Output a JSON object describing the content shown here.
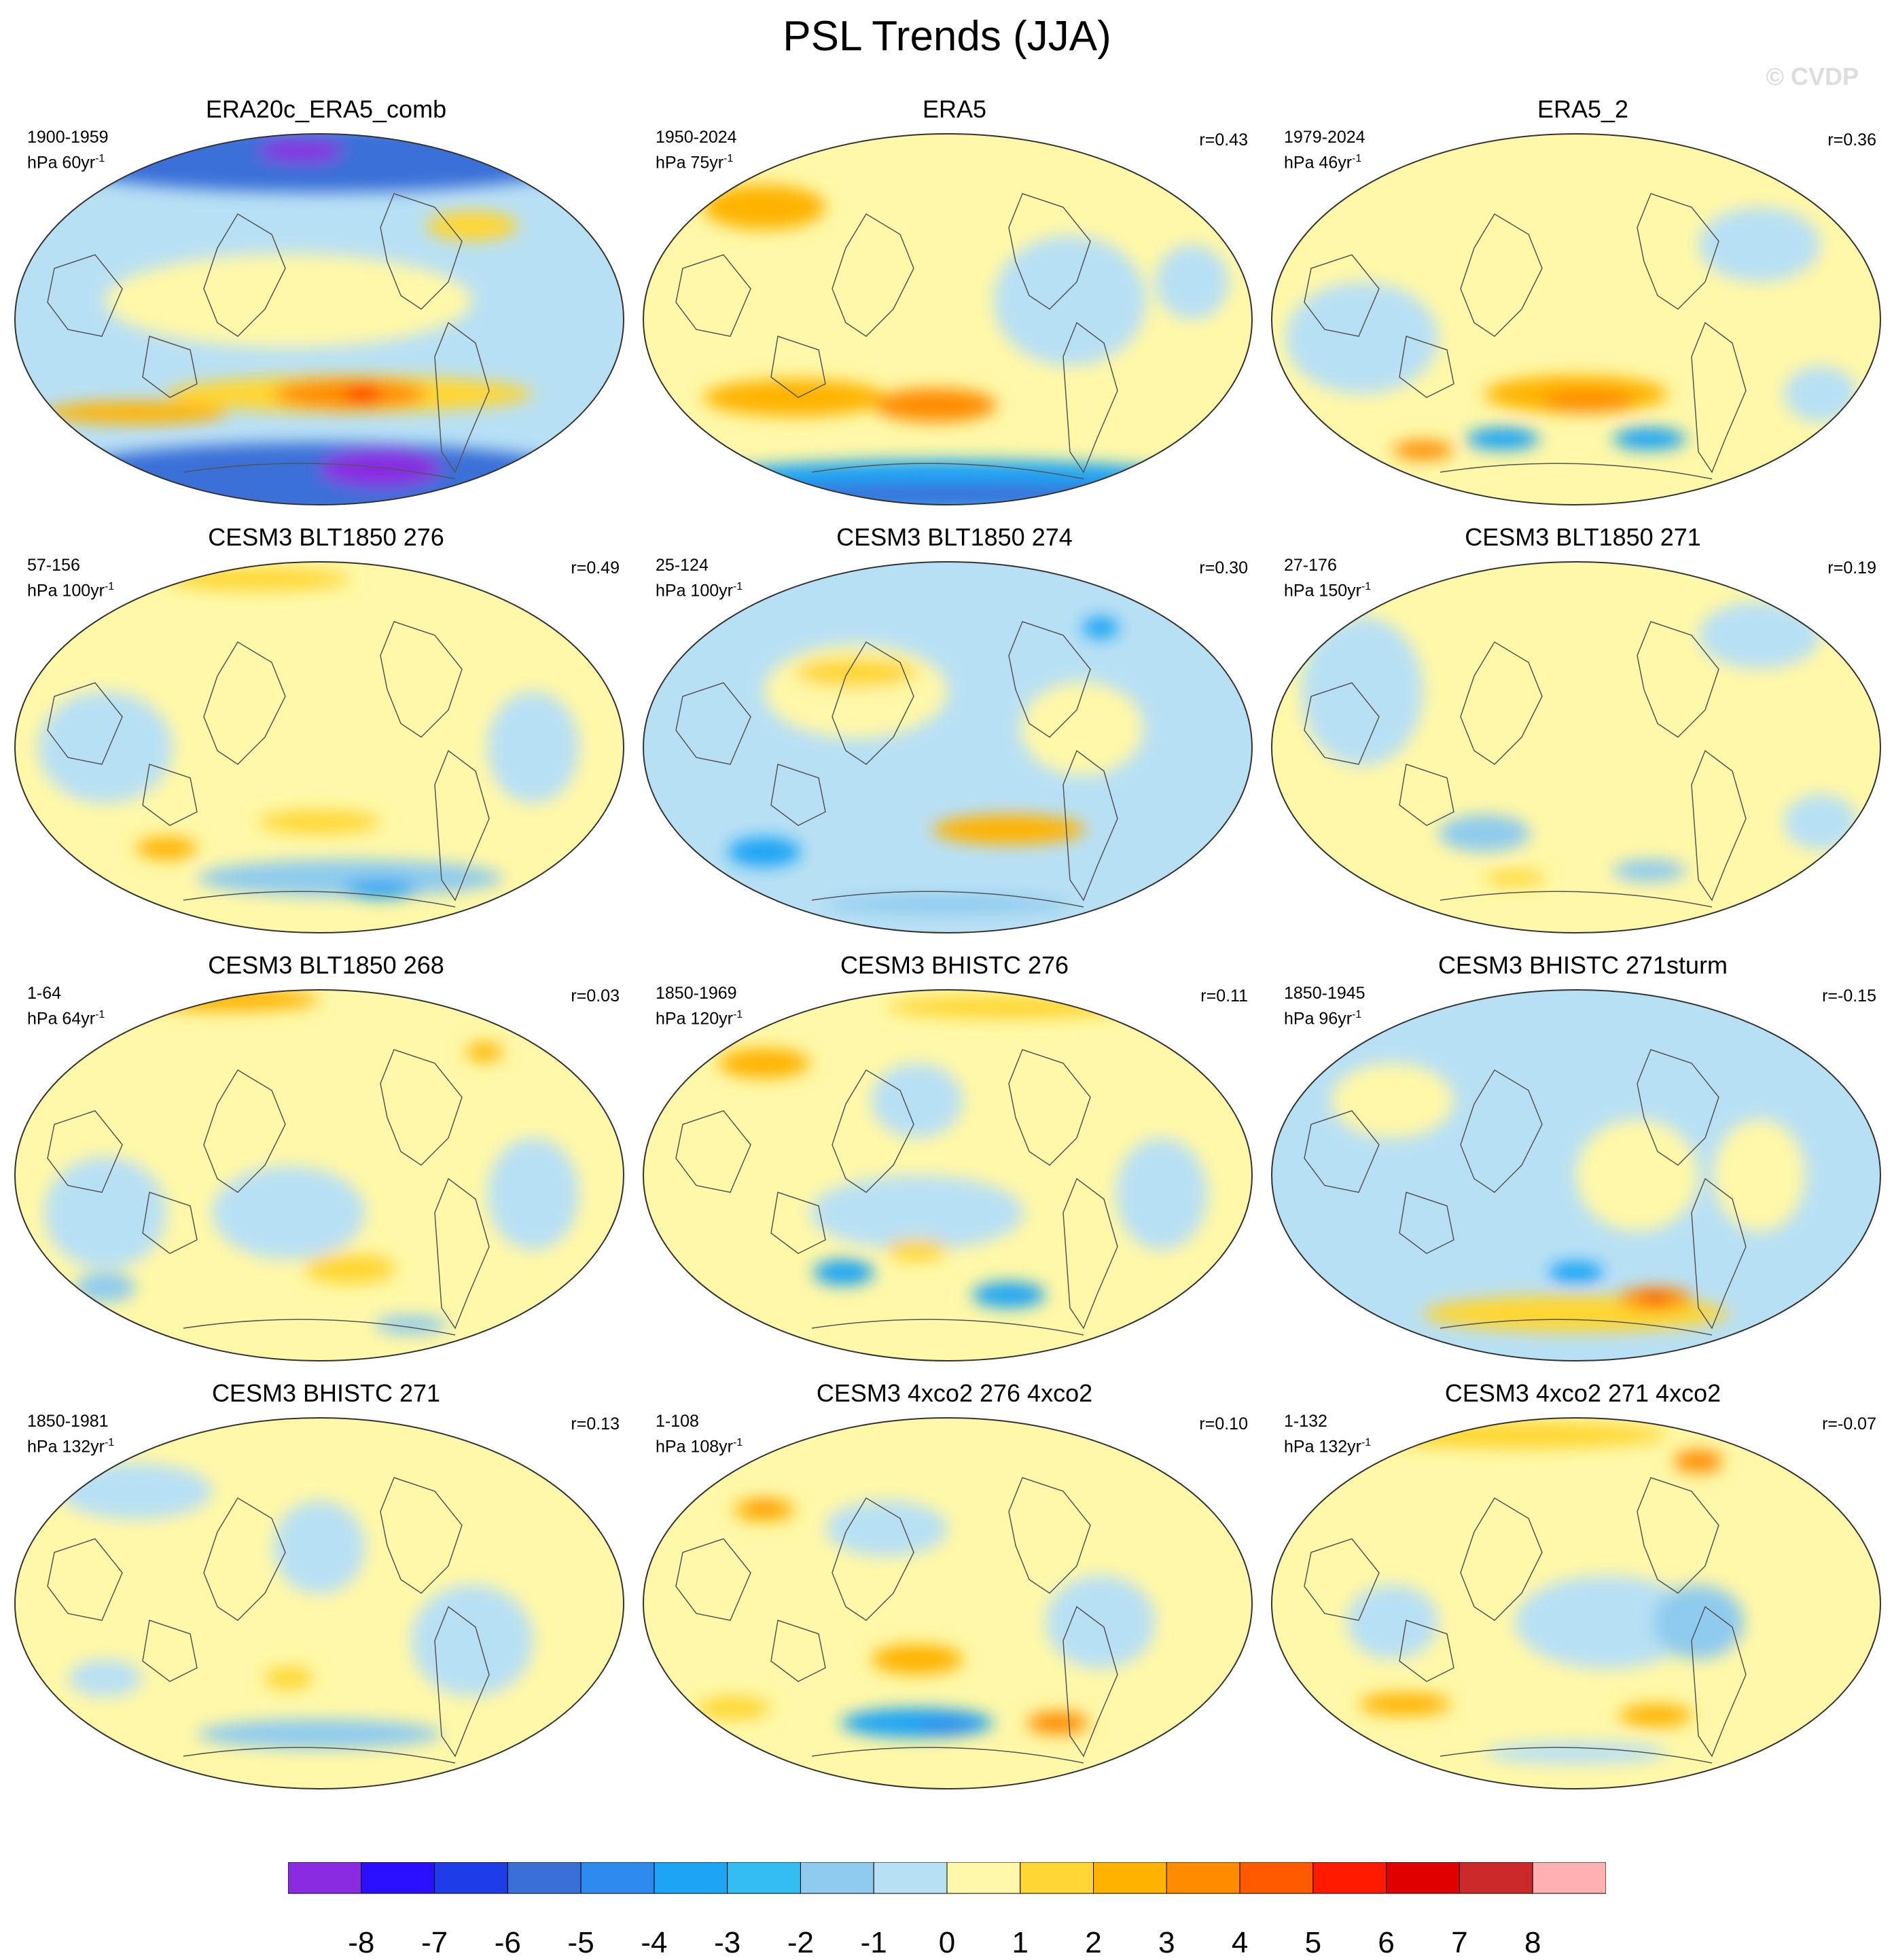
{
  "title": "PSL Trends (JJA)",
  "watermark": "© CVDP",
  "panels": [
    {
      "title": "ERA20c_ERA5_comb",
      "years": "1900-1959",
      "trend_unit": "hPa 60yr",
      "exp": "-1",
      "r": ""
    },
    {
      "title": "ERA5",
      "years": "1950-2024",
      "trend_unit": "hPa 75yr",
      "exp": "-1",
      "r": "r=0.43"
    },
    {
      "title": "ERA5_2",
      "years": "1979-2024",
      "trend_unit": "hPa 46yr",
      "exp": "-1",
      "r": "r=0.36"
    },
    {
      "title": "CESM3 BLT1850 276",
      "years": "57-156",
      "trend_unit": "hPa 100yr",
      "exp": "-1",
      "r": "r=0.49"
    },
    {
      "title": "CESM3 BLT1850 274",
      "years": "25-124",
      "trend_unit": "hPa 100yr",
      "exp": "-1",
      "r": "r=0.30"
    },
    {
      "title": "CESM3 BLT1850 271",
      "years": "27-176",
      "trend_unit": "hPa 150yr",
      "exp": "-1",
      "r": "r=0.19"
    },
    {
      "title": "CESM3 BLT1850 268",
      "years": "1-64",
      "trend_unit": "hPa 64yr",
      "exp": "-1",
      "r": "r=0.03"
    },
    {
      "title": "CESM3 BHISTC 276",
      "years": "1850-1969",
      "trend_unit": "hPa 120yr",
      "exp": "-1",
      "r": "r=0.11"
    },
    {
      "title": "CESM3 BHISTC 271sturm",
      "years": "1850-1945",
      "trend_unit": "hPa 96yr",
      "exp": "-1",
      "r": "r=-0.15"
    },
    {
      "title": "CESM3 BHISTC 271",
      "years": "1850-1981",
      "trend_unit": "hPa 132yr",
      "exp": "-1",
      "r": "r=0.13"
    },
    {
      "title": "CESM3 4xco2 276 4xco2",
      "years": "1-108",
      "trend_unit": "hPa 108yr",
      "exp": "-1",
      "r": "r=0.10"
    },
    {
      "title": "CESM3 4xco2 271 4xco2",
      "years": "1-132",
      "trend_unit": "hPa 132yr",
      "exp": "-1",
      "r": "r=-0.07"
    }
  ],
  "colorbar": {
    "colors": [
      "#8a2be2",
      "#2a10ff",
      "#1e3ce8",
      "#3b6fd8",
      "#2f8aef",
      "#1ea4f4",
      "#33bdf3",
      "#8ecbee",
      "#b8e0f4",
      "#fff8a8",
      "#ffd633",
      "#ffb300",
      "#ff8c00",
      "#ff5a00",
      "#ff1a00",
      "#e00000",
      "#cc2a2a",
      "#ffb0b0"
    ],
    "ticks": [
      "-8",
      "-7",
      "-6",
      "-5",
      "-4",
      "-3",
      "-2",
      "-1",
      "0",
      "1",
      "2",
      "3",
      "4",
      "5",
      "6",
      "7",
      "8"
    ]
  },
  "map_fields": [
    {
      "bg": "#b8e0f4",
      "blobs": [
        [
          "#3b6fd8",
          0.5,
          0.07,
          0.9,
          0.18
        ],
        [
          "#8a2be2",
          0.47,
          0.05,
          0.14,
          0.06
        ],
        [
          "#3b6fd8",
          0.5,
          0.93,
          0.9,
          0.2
        ],
        [
          "#8a2be2",
          0.6,
          0.9,
          0.2,
          0.1
        ],
        [
          "#fff8a8",
          0.45,
          0.45,
          0.6,
          0.25
        ],
        [
          "#ffd633",
          0.55,
          0.7,
          0.6,
          0.1
        ],
        [
          "#ff8c00",
          0.55,
          0.7,
          0.25,
          0.08
        ],
        [
          "#ff1a00",
          0.57,
          0.7,
          0.06,
          0.04
        ],
        [
          "#ffb300",
          0.2,
          0.75,
          0.3,
          0.06
        ],
        [
          "#ffd633",
          0.75,
          0.25,
          0.15,
          0.08
        ]
      ]
    },
    {
      "bg": "#fff8a8",
      "blobs": [
        [
          "#1ea4f4",
          0.5,
          0.95,
          0.95,
          0.15
        ],
        [
          "#3b6fd8",
          0.5,
          0.97,
          0.8,
          0.06
        ],
        [
          "#ffb300",
          0.25,
          0.71,
          0.3,
          0.1
        ],
        [
          "#ff8c00",
          0.48,
          0.73,
          0.2,
          0.09
        ],
        [
          "#ffb300",
          0.2,
          0.2,
          0.2,
          0.12
        ],
        [
          "#b8e0f4",
          0.7,
          0.45,
          0.25,
          0.35
        ],
        [
          "#b8e0f4",
          0.9,
          0.4,
          0.12,
          0.2
        ]
      ]
    },
    {
      "bg": "#fff8a8",
      "blobs": [
        [
          "#b8e0f4",
          0.15,
          0.55,
          0.25,
          0.3
        ],
        [
          "#b8e0f4",
          0.8,
          0.3,
          0.2,
          0.2
        ],
        [
          "#ffb300",
          0.5,
          0.7,
          0.3,
          0.1
        ],
        [
          "#ff8c00",
          0.52,
          0.72,
          0.15,
          0.06
        ],
        [
          "#1ea4f4",
          0.38,
          0.82,
          0.12,
          0.06
        ],
        [
          "#1ea4f4",
          0.62,
          0.82,
          0.12,
          0.06
        ],
        [
          "#ff8c00",
          0.25,
          0.85,
          0.1,
          0.05
        ],
        [
          "#b8e0f4",
          0.9,
          0.7,
          0.12,
          0.15
        ]
      ]
    },
    {
      "bg": "#fff8a8",
      "blobs": [
        [
          "#b8e0f4",
          0.15,
          0.5,
          0.22,
          0.3
        ],
        [
          "#b8e0f4",
          0.85,
          0.5,
          0.15,
          0.3
        ],
        [
          "#8ecbee",
          0.55,
          0.85,
          0.5,
          0.1
        ],
        [
          "#1ea4f4",
          0.6,
          0.88,
          0.12,
          0.05
        ],
        [
          "#ffb300",
          0.25,
          0.77,
          0.1,
          0.06
        ],
        [
          "#ffd633",
          0.5,
          0.7,
          0.2,
          0.06
        ],
        [
          "#ffd633",
          0.4,
          0.05,
          0.3,
          0.06
        ]
      ]
    },
    {
      "bg": "#b8e0f4",
      "blobs": [
        [
          "#fff8a8",
          0.35,
          0.35,
          0.3,
          0.25
        ],
        [
          "#fff8a8",
          0.72,
          0.45,
          0.2,
          0.25
        ],
        [
          "#ffb300",
          0.6,
          0.72,
          0.25,
          0.08
        ],
        [
          "#1ea4f4",
          0.2,
          0.78,
          0.12,
          0.08
        ],
        [
          "#1ea4f4",
          0.75,
          0.18,
          0.06,
          0.06
        ],
        [
          "#ffd633",
          0.35,
          0.3,
          0.2,
          0.08
        ],
        [
          "#8ecbee",
          0.5,
          0.92,
          0.4,
          0.05
        ]
      ]
    },
    {
      "bg": "#fff8a8",
      "blobs": [
        [
          "#b8e0f4",
          0.15,
          0.35,
          0.2,
          0.4
        ],
        [
          "#b8e0f4",
          0.8,
          0.2,
          0.2,
          0.18
        ],
        [
          "#8ecbee",
          0.35,
          0.73,
          0.15,
          0.1
        ],
        [
          "#8ecbee",
          0.62,
          0.83,
          0.12,
          0.06
        ],
        [
          "#b8e0f4",
          0.9,
          0.7,
          0.12,
          0.15
        ],
        [
          "#ffd633",
          0.4,
          0.85,
          0.1,
          0.04
        ]
      ]
    },
    {
      "bg": "#fff8a8",
      "blobs": [
        [
          "#b8e0f4",
          0.15,
          0.6,
          0.2,
          0.3
        ],
        [
          "#b8e0f4",
          0.45,
          0.6,
          0.25,
          0.25
        ],
        [
          "#b8e0f4",
          0.85,
          0.55,
          0.15,
          0.3
        ],
        [
          "#ffb300",
          0.35,
          0.03,
          0.3,
          0.06
        ],
        [
          "#ffb300",
          0.77,
          0.17,
          0.06,
          0.05
        ],
        [
          "#8ecbee",
          0.15,
          0.8,
          0.1,
          0.08
        ],
        [
          "#8ecbee",
          0.65,
          0.9,
          0.12,
          0.05
        ],
        [
          "#ffd633",
          0.55,
          0.75,
          0.15,
          0.08
        ]
      ]
    },
    {
      "bg": "#fff8a8",
      "blobs": [
        [
          "#b8e0f4",
          0.45,
          0.3,
          0.15,
          0.2
        ],
        [
          "#b8e0f4",
          0.45,
          0.6,
          0.35,
          0.2
        ],
        [
          "#b8e0f4",
          0.85,
          0.55,
          0.15,
          0.3
        ],
        [
          "#ffd633",
          0.6,
          0.05,
          0.4,
          0.06
        ],
        [
          "#ffb300",
          0.2,
          0.2,
          0.15,
          0.08
        ],
        [
          "#1ea4f4",
          0.33,
          0.76,
          0.1,
          0.07
        ],
        [
          "#1ea4f4",
          0.6,
          0.82,
          0.12,
          0.07
        ],
        [
          "#ffd633",
          0.45,
          0.7,
          0.1,
          0.06
        ]
      ]
    },
    {
      "bg": "#b8e0f4",
      "blobs": [
        [
          "#fff8a8",
          0.2,
          0.3,
          0.2,
          0.2
        ],
        [
          "#fff8a8",
          0.6,
          0.5,
          0.2,
          0.3
        ],
        [
          "#fff8a8",
          0.8,
          0.5,
          0.15,
          0.3
        ],
        [
          "#ffd633",
          0.5,
          0.87,
          0.5,
          0.1
        ],
        [
          "#ff8c00",
          0.63,
          0.83,
          0.12,
          0.06
        ],
        [
          "#ff1a00",
          0.63,
          0.83,
          0.04,
          0.025
        ],
        [
          "#1ea4f4",
          0.5,
          0.76,
          0.09,
          0.06
        ]
      ]
    },
    {
      "bg": "#fff8a8",
      "blobs": [
        [
          "#b8e0f4",
          0.2,
          0.2,
          0.25,
          0.15
        ],
        [
          "#b8e0f4",
          0.5,
          0.35,
          0.15,
          0.25
        ],
        [
          "#b8e0f4",
          0.75,
          0.6,
          0.2,
          0.3
        ],
        [
          "#8ecbee",
          0.5,
          0.85,
          0.4,
          0.08
        ],
        [
          "#ffd633",
          0.45,
          0.7,
          0.08,
          0.06
        ],
        [
          "#b8e0f4",
          0.15,
          0.7,
          0.12,
          0.1
        ]
      ]
    },
    {
      "bg": "#fff8a8",
      "blobs": [
        [
          "#b8e0f4",
          0.4,
          0.3,
          0.2,
          0.15
        ],
        [
          "#b8e0f4",
          0.75,
          0.55,
          0.18,
          0.25
        ],
        [
          "#ffb300",
          0.2,
          0.25,
          0.1,
          0.06
        ],
        [
          "#ff8c00",
          0.2,
          0.24,
          0.05,
          0.03
        ],
        [
          "#ffb300",
          0.45,
          0.65,
          0.15,
          0.08
        ],
        [
          "#1ea4f4",
          0.45,
          0.82,
          0.25,
          0.08
        ],
        [
          "#2f8aef",
          0.5,
          0.83,
          0.1,
          0.04
        ],
        [
          "#ff8c00",
          0.68,
          0.82,
          0.1,
          0.06
        ],
        [
          "#ffd633",
          0.15,
          0.78,
          0.12,
          0.06
        ]
      ]
    },
    {
      "bg": "#fff8a8",
      "blobs": [
        [
          "#b8e0f4",
          0.55,
          0.55,
          0.3,
          0.25
        ],
        [
          "#8ecbee",
          0.7,
          0.55,
          0.15,
          0.2
        ],
        [
          "#b8e0f4",
          0.2,
          0.55,
          0.15,
          0.2
        ],
        [
          "#ffd633",
          0.4,
          0.05,
          0.5,
          0.07
        ],
        [
          "#ff8c00",
          0.7,
          0.12,
          0.08,
          0.06
        ],
        [
          "#ffb300",
          0.22,
          0.77,
          0.15,
          0.06
        ],
        [
          "#ffb300",
          0.63,
          0.8,
          0.12,
          0.06
        ],
        [
          "#b8e0f4",
          0.5,
          0.9,
          0.3,
          0.06
        ]
      ]
    }
  ]
}
